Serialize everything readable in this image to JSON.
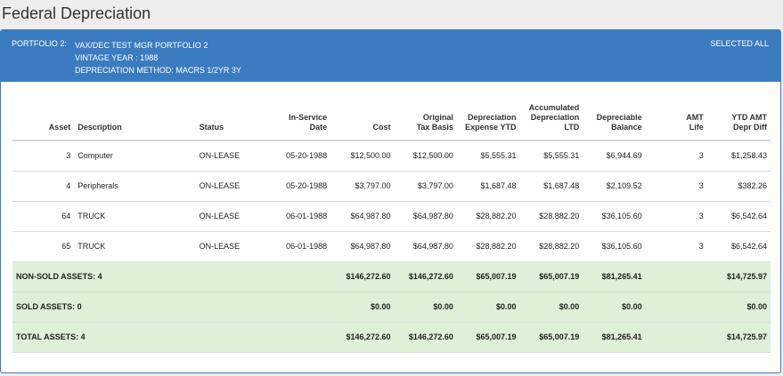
{
  "page": {
    "title": "Federal Depreciation"
  },
  "header": {
    "portfolio_label": "PORTFOLIO  2:",
    "portfolio_name": "VAX/DEC TEST MGR PORTFOLIO 2",
    "vintage_year": "VINTAGE YEAR : 1988",
    "depreciation_method": "DEPRECIATION METHOD: MACRS 1/2YR 3Y",
    "selection": "SELECTED ALL"
  },
  "table": {
    "headers": {
      "asset": "Asset",
      "description": "Description",
      "status": "Status",
      "in_service_1": "In-Service",
      "in_service_2": "Date",
      "cost": "Cost",
      "orig_1": "Original",
      "orig_2": "Tax Basis",
      "dep_ytd_1": "Depreciation",
      "dep_ytd_2": "Expense YTD",
      "acc_1": "Accumulated",
      "acc_2": "Depreciation",
      "acc_3": "LTD",
      "bal_1": "Depreciable",
      "bal_2": "Balance",
      "amt_1": "AMT",
      "amt_2": "Life",
      "ytd_amt_1": "YTD AMT",
      "ytd_amt_2": "Depr Diff"
    },
    "rows": [
      {
        "asset": "3",
        "description": "Computer",
        "status": "ON-LEASE",
        "date": "05-20-1988",
        "cost": "$12,500.00",
        "orig": "$12,500.00",
        "dep_ytd": "$5,555.31",
        "acc": "$5,555.31",
        "bal": "$6,944.69",
        "amt_life": "3",
        "ytd_amt": "$1,258.43"
      },
      {
        "asset": "4",
        "description": "Peripherals",
        "status": "ON-LEASE",
        "date": "05-20-1988",
        "cost": "$3,797.00",
        "orig": "$3,797.00",
        "dep_ytd": "$1,687.48",
        "acc": "$1,687.48",
        "bal": "$2,109.52",
        "amt_life": "3",
        "ytd_amt": "$382.26"
      },
      {
        "asset": "64",
        "description": "TRUCK",
        "status": "ON-LEASE",
        "date": "06-01-1988",
        "cost": "$64,987.80",
        "orig": "$64,987.80",
        "dep_ytd": "$28,882.20",
        "acc": "$28,882.20",
        "bal": "$36,105.60",
        "amt_life": "3",
        "ytd_amt": "$6,542.64"
      },
      {
        "asset": "65",
        "description": "TRUCK",
        "status": "ON-LEASE",
        "date": "06-01-1988",
        "cost": "$64,987.80",
        "orig": "$64,987.80",
        "dep_ytd": "$28,882.20",
        "acc": "$28,882.20",
        "bal": "$36,105.60",
        "amt_life": "3",
        "ytd_amt": "$6,542.64"
      }
    ],
    "summary": [
      {
        "label": "NON-SOLD ASSETS: 4",
        "cost": "$146,272.60",
        "orig": "$146,272.60",
        "dep_ytd": "$65,007.19",
        "acc": "$65,007.19",
        "bal": "$81,265.41",
        "ytd_amt": "$14,725.97"
      },
      {
        "label": "SOLD ASSETS: 0",
        "cost": "$0.00",
        "orig": "$0.00",
        "dep_ytd": "$0.00",
        "acc": "$0.00",
        "bal": "$0.00",
        "ytd_amt": "$0.00"
      },
      {
        "label": "TOTAL ASSETS: 4",
        "cost": "$146,272.60",
        "orig": "$146,272.60",
        "dep_ytd": "$65,007.19",
        "acc": "$65,007.19",
        "bal": "$81,265.41",
        "ytd_amt": "$14,725.97"
      }
    ]
  },
  "colors": {
    "header_blue": "#3b7bc0",
    "summary_green": "#dff0d8"
  }
}
